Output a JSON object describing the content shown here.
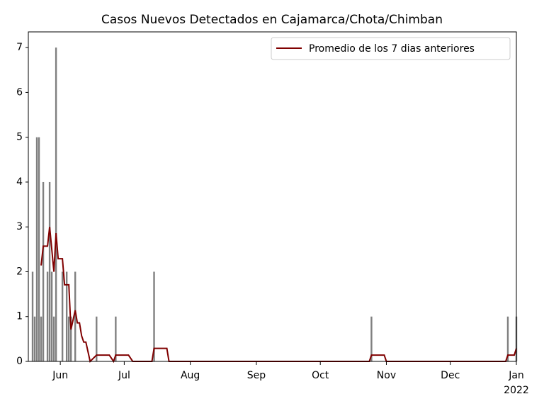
{
  "chart_data": {
    "type": "combo",
    "title": "Casos Nuevos Detectados en Cajamarca/Chota/Chimban",
    "bars": {
      "color": "#808080",
      "x": [
        139,
        140,
        141,
        142,
        143,
        144,
        146,
        147,
        148,
        149,
        150,
        153,
        155,
        156,
        157,
        159,
        169,
        178,
        196,
        298,
        362,
        366
      ],
      "values": [
        2,
        1,
        5,
        5,
        1,
        4,
        2,
        4,
        2,
        1,
        7,
        2,
        2,
        1,
        1,
        2,
        1,
        1,
        2,
        1,
        1,
        1
      ]
    },
    "line": {
      "name": "Promedio de los 7 dias anteriores",
      "color": "#800000",
      "x": [
        143,
        144,
        146,
        147,
        149,
        150,
        151,
        153,
        154,
        156,
        157,
        159,
        160,
        161,
        162,
        163,
        164,
        166,
        169,
        175,
        177,
        178,
        184,
        186,
        195,
        196,
        202,
        203,
        297,
        298,
        304,
        305,
        361,
        362,
        365,
        366
      ],
      "values": [
        2.14,
        2.57,
        2.57,
        3.0,
        2.0,
        2.86,
        2.29,
        2.29,
        1.71,
        1.71,
        0.71,
        1.14,
        0.86,
        0.86,
        0.57,
        0.43,
        0.43,
        0,
        0.14,
        0.14,
        0,
        0.14,
        0.14,
        0,
        0,
        0.29,
        0.29,
        0,
        0,
        0.14,
        0.14,
        0,
        0,
        0.14,
        0.14,
        0.29
      ]
    },
    "xlim": [
      137,
      366
    ],
    "xticks": [
      {
        "value": 152,
        "label": "Jun"
      },
      {
        "value": 182,
        "label": "Jul"
      },
      {
        "value": 213,
        "label": "Aug"
      },
      {
        "value": 244,
        "label": "Sep"
      },
      {
        "value": 274,
        "label": "Oct"
      },
      {
        "value": 305,
        "label": "Nov"
      },
      {
        "value": 335,
        "label": "Dec"
      },
      {
        "value": 366,
        "label": "Jan"
      }
    ],
    "year_label": "2022",
    "ylim": [
      0,
      7.35
    ],
    "yticks": [
      0,
      1,
      2,
      3,
      4,
      5,
      6,
      7
    ],
    "legend": "upper right"
  }
}
